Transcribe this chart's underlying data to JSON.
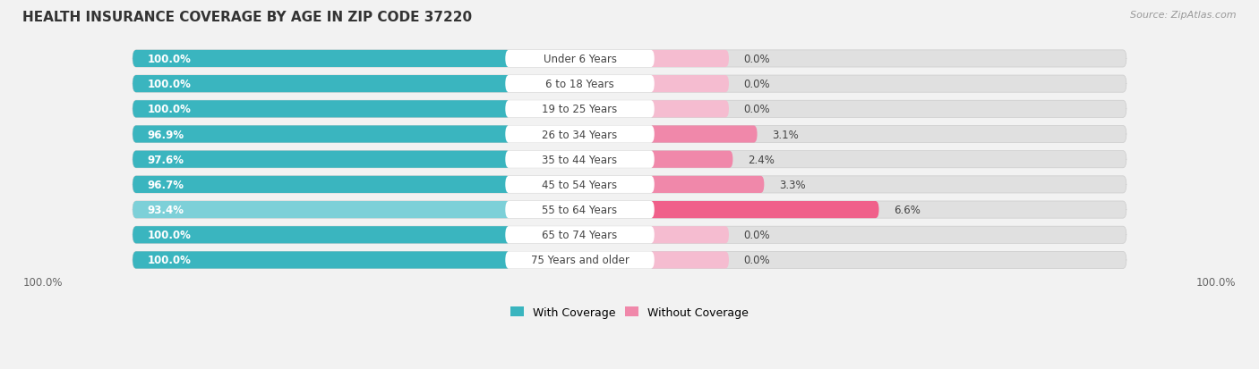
{
  "title": "HEALTH INSURANCE COVERAGE BY AGE IN ZIP CODE 37220",
  "source": "Source: ZipAtlas.com",
  "categories": [
    "Under 6 Years",
    "6 to 18 Years",
    "19 to 25 Years",
    "26 to 34 Years",
    "35 to 44 Years",
    "45 to 54 Years",
    "55 to 64 Years",
    "65 to 74 Years",
    "75 Years and older"
  ],
  "with_coverage": [
    100.0,
    100.0,
    100.0,
    96.9,
    97.6,
    96.7,
    93.4,
    100.0,
    100.0
  ],
  "without_coverage": [
    0.0,
    0.0,
    0.0,
    3.1,
    2.4,
    3.3,
    6.6,
    0.0,
    0.0
  ],
  "color_with": "#3ab5bf",
  "color_with_light": "#7dd0d8",
  "color_without_dark": "#f0608a",
  "color_without_mid": "#f088aa",
  "color_without_light": "#f5bcd0",
  "bg_color": "#f2f2f2",
  "bar_bg_color": "#e0e0e0",
  "title_fontsize": 11,
  "label_fontsize": 8.5,
  "source_fontsize": 8,
  "legend_fontsize": 9
}
